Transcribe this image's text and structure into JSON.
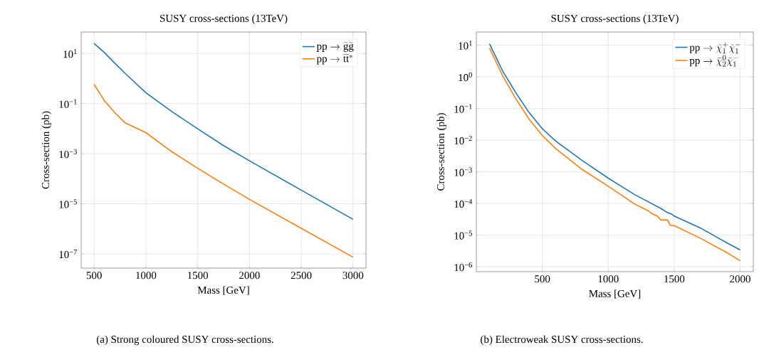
{
  "chart_data": [
    {
      "type": "line",
      "title": "SUSY cross-sections (13TeV)",
      "xlabel": "Mass [GeV]",
      "ylabel": "Cross-section (pb)",
      "log": "y",
      "grid": true,
      "legend": "top right",
      "xlim": [
        375,
        3125
      ],
      "ylim": [
        2.7e-08,
        72
      ],
      "xticks": [
        500,
        1000,
        1500,
        2000,
        2500,
        3000
      ],
      "yticks": [
        {
          "value": 10,
          "label": "10$^{1}$"
        },
        {
          "value": 0.1,
          "label": "10$^{−1}$"
        },
        {
          "value": 0.001,
          "label": "10$^{−3}$"
        },
        {
          "value": 1e-05,
          "label": "10$^{−5}$"
        },
        {
          "value": 1e-07,
          "label": "10$^{−7}$"
        }
      ],
      "x": [
        500,
        600,
        700,
        800,
        1000,
        1250,
        1500,
        1750,
        2000,
        2500,
        3000
      ],
      "series": [
        {
          "name": "\\mathrm{pp}\\to\\widetilde{\\mathrm{g}}\\widetilde{\\mathrm{g}}",
          "color": "#1f77b4",
          "values": [
            25,
            10.7,
            4.1,
            1.6,
            0.27,
            0.048,
            0.0098,
            0.0021,
            0.00052,
            3.5e-05,
            2.4e-06
          ]
        },
        {
          "name": "\\mathrm{pp}\\to\\widetilde{\\mathrm{t}}\\widetilde{\\mathrm{t}}^{*}",
          "color": "#ff7f0e",
          "values": [
            0.58,
            0.13,
            0.043,
            0.017,
            0.0069,
            0.0012,
            0.00026,
            6.1e-05,
            1.5e-05,
            1.05e-06,
            7.4e-08
          ]
        }
      ],
      "annotations": [
        "(a) Strong coloured SUSY cross-sections."
      ]
    },
    {
      "type": "line",
      "title": "SUSY cross-sections (13TeV)",
      "xlabel": "Mass [GeV]",
      "ylabel": "Cross-section (pb)",
      "log": "y",
      "grid": true,
      "legend": "top right",
      "xlim": [
        0,
        2100
      ],
      "ylim": [
        7e-07,
        26
      ],
      "xticks": [
        500,
        1000,
        1500,
        2000
      ],
      "yticks": [
        {
          "value": 10,
          "label": "10$^{1}$"
        },
        {
          "value": 1,
          "label": "10$^{0}$"
        },
        {
          "value": 0.1,
          "label": "10$^{−1}$"
        },
        {
          "value": 0.01,
          "label": "10$^{−2}$"
        },
        {
          "value": 0.001,
          "label": "10$^{−3}$"
        },
        {
          "value": 0.0001,
          "label": "10$^{−4}$"
        },
        {
          "value": 1e-05,
          "label": "10$^{−5}$"
        },
        {
          "value": 1e-06,
          "label": "10$^{−6}$"
        }
      ],
      "series": [
        {
          "name": "\\mathrm{pp}\\to\\widetilde{\\chi}_1^{+}\\widetilde{\\chi}_1^{-}",
          "color": "#1f77b4",
          "x": [
            100,
            200,
            300,
            400,
            500,
            600,
            800,
            1000,
            1200,
            1300,
            1400,
            1450,
            1480,
            1500,
            1700,
            1900,
            1950,
            2000
          ],
          "values": [
            11,
            1.5,
            0.31,
            0.074,
            0.023,
            0.0095,
            0.0023,
            0.00063,
            0.00019,
            0.000115,
            6.9e-05,
            5.1e-05,
            4.6e-05,
            4e-05,
            1.67e-05,
            5.7e-06,
            4.4e-06,
            3.4e-06
          ]
        },
        {
          "name": "\\mathrm{pp}\\to\\widetilde{\\chi}_2^{0}\\widetilde{\\chi}_1^{-}",
          "color": "#ff7f0e",
          "x": [
            100,
            200,
            300,
            400,
            500,
            600,
            800,
            1000,
            1200,
            1300,
            1330,
            1370,
            1400,
            1450,
            1470,
            1500,
            1700,
            1900,
            1930,
            2000
          ],
          "values": [
            8.1,
            1.07,
            0.2,
            0.046,
            0.014,
            0.0055,
            0.0012,
            0.00035,
            9.6e-05,
            6e-05,
            4.8e-05,
            4e-05,
            3e-05,
            3e-05,
            2.05e-05,
            2e-05,
            7.9e-06,
            2.8e-06,
            2.35e-06,
            1.55e-06
          ]
        }
      ],
      "annotations": [
        "(b) Electroweak SUSY cross-sections."
      ]
    }
  ]
}
